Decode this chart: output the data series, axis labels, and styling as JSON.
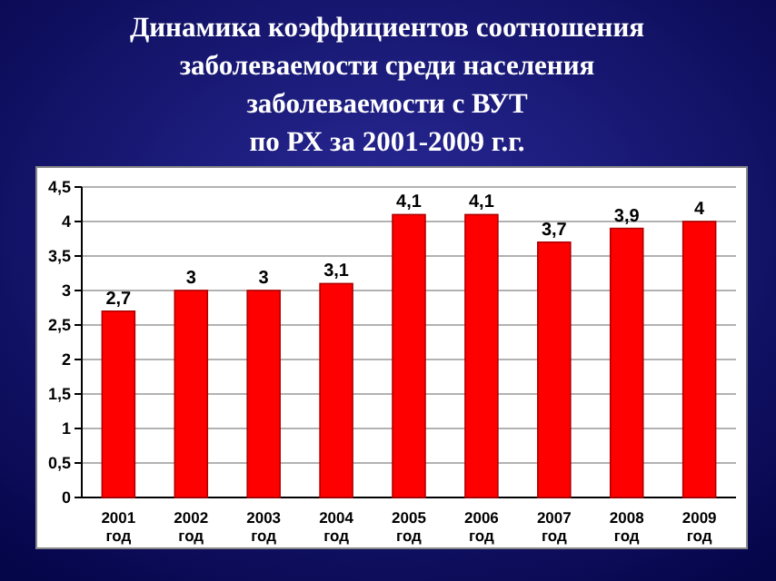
{
  "chart_data": {
    "type": "bar",
    "title": "Динамика коэффициентов соотношения\nзаболеваемости среди населения\nзаболеваемости с ВУТ\nпо РХ за 2001-2009 г.г.",
    "categories": [
      "2001\nгод",
      "2002\nгод",
      "2003\nгод",
      "2004\nгод",
      "2005\nгод",
      "2006\nгод",
      "2007\nгод",
      "2008\nгод",
      "2009\nгод"
    ],
    "values": [
      2.7,
      3,
      3,
      3.1,
      4.1,
      4.1,
      3.7,
      3.9,
      4
    ],
    "value_labels": [
      "2,7",
      "3",
      "3",
      "3,1",
      "4,1",
      "4,1",
      "3,7",
      "3,9",
      "4"
    ],
    "color": "#ff0000",
    "ylim": [
      0,
      4.5
    ],
    "yticks": [
      0,
      {
        "value": 0.5,
        "label": "0,5"
      },
      1,
      {
        "value": 1.5,
        "label": "1,5"
      },
      2,
      {
        "value": 2.5,
        "label": "2,5"
      },
      3,
      {
        "value": 3.5,
        "label": "3,5"
      },
      4,
      {
        "value": 4.5,
        "label": "4,5"
      }
    ],
    "grid": "y"
  }
}
